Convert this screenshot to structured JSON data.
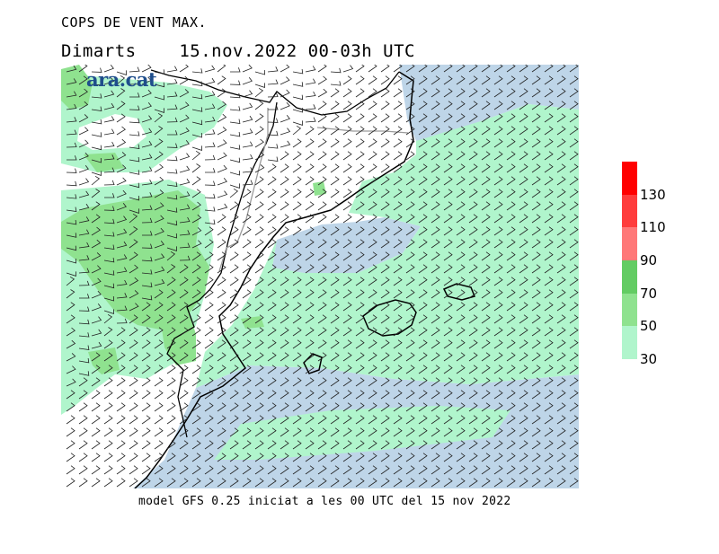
{
  "header": {
    "title": "COPS DE VENT MAX.",
    "day": "Dimarts",
    "period": "15.nov.2022 00-03h UTC"
  },
  "logo": {
    "text": "ara.cat"
  },
  "footer": {
    "text": "model GFS 0.25 iniciat a les 00 UTC del 15 nov 2022"
  },
  "legend": {
    "labels": [
      "30",
      "50",
      "70",
      "90",
      "110",
      "130"
    ],
    "bands": [
      {
        "from": 30,
        "to": 50,
        "color": "#b0f5cc"
      },
      {
        "from": 50,
        "to": 70,
        "color": "#8fe28f"
      },
      {
        "from": 70,
        "to": 90,
        "color": "#63cc63"
      },
      {
        "from": 90,
        "to": 110,
        "color": "#ff7878"
      },
      {
        "from": 110,
        "to": 130,
        "color": "#ff3c3c"
      },
      {
        "from": 130,
        "to": 150,
        "color": "#ff0000"
      }
    ]
  },
  "map_colors": {
    "land": "#ffffff",
    "calm_sea": "#bed5e8",
    "coast": "#000000",
    "border": "#9a9a9a"
  }
}
